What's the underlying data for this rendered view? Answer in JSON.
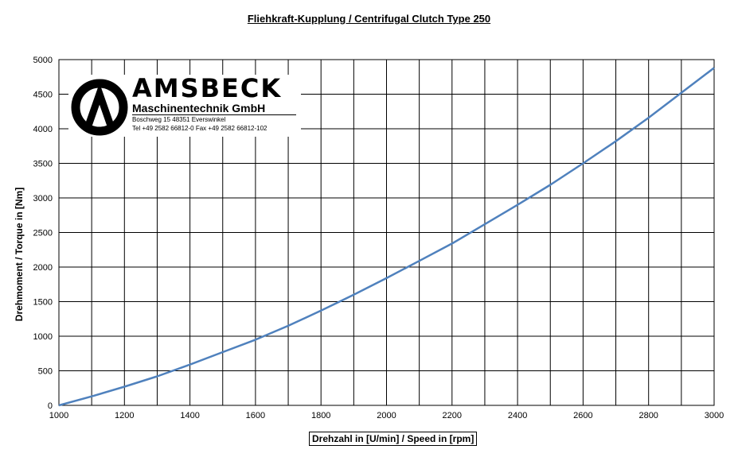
{
  "chart_data": {
    "type": "line",
    "title": "Fliehkraft-Kupplung / Centrifugal Clutch Type 250",
    "xlabel": "Drehzahl in [U/min] / Speed in [rpm]",
    "ylabel": "Drehmoment / Torque in [Nm]",
    "xlim": [
      1000,
      3000
    ],
    "ylim": [
      0,
      5000
    ],
    "xticks": [
      1000,
      1200,
      1400,
      1600,
      1800,
      2000,
      2200,
      2400,
      2600,
      2800,
      3000
    ],
    "yticks": [
      0,
      500,
      1000,
      1500,
      2000,
      2500,
      3000,
      3500,
      4000,
      4500,
      5000
    ],
    "x_minor_step": 100,
    "grid": true,
    "line_color": "#4f81bd",
    "series": [
      {
        "x": [
          1000,
          1100,
          1200,
          1300,
          1400,
          1500,
          1600,
          1700,
          1800,
          1900,
          2000,
          2100,
          2200,
          2300,
          2400,
          2500,
          2600,
          2700,
          2800,
          2900,
          3000
        ],
        "y": [
          0,
          130,
          270,
          420,
          590,
          770,
          950,
          1150,
          1370,
          1600,
          1840,
          2090,
          2340,
          2620,
          2900,
          3190,
          3500,
          3820,
          4160,
          4520,
          4880
        ]
      }
    ]
  },
  "logo": {
    "name": "AMSBECK",
    "subtitle": "Maschinentechnik GmbH",
    "address": "Boschweg 15 48351 Everswinkel",
    "phone": "Tel +49 2582 66812-0 Fax +49 2582 66812-102"
  }
}
